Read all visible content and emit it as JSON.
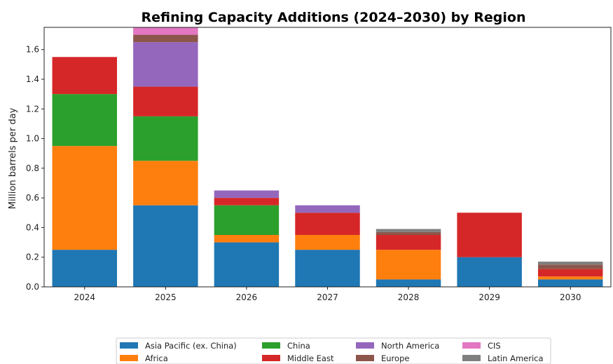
{
  "chart_data": {
    "type": "bar",
    "stacked": true,
    "title": "Refining Capacity Additions (2024–2030) by Region",
    "xlabel": "",
    "ylabel": "Million barrels per day",
    "ylim": [
      0,
      1.75
    ],
    "yticks": [
      "0.0",
      "0.2",
      "0.4",
      "0.6",
      "0.8",
      "1.0",
      "1.2",
      "1.4",
      "1.6"
    ],
    "grid": false,
    "legend_position": "bottom",
    "categories": [
      "2024",
      "2025",
      "2026",
      "2027",
      "2028",
      "2029",
      "2030"
    ],
    "series": [
      {
        "name": "Asia Pacific (ex. China)",
        "color": "#1f77b4",
        "values": [
          0.25,
          0.55,
          0.3,
          0.25,
          0.05,
          0.2,
          0.05
        ]
      },
      {
        "name": "Africa",
        "color": "#ff7f0e",
        "values": [
          0.7,
          0.3,
          0.05,
          0.1,
          0.2,
          0.0,
          0.02
        ]
      },
      {
        "name": "China",
        "color": "#2ca02c",
        "values": [
          0.35,
          0.3,
          0.2,
          0.0,
          0.0,
          0.0,
          0.0
        ]
      },
      {
        "name": "Middle East",
        "color": "#d62728",
        "values": [
          0.25,
          0.2,
          0.05,
          0.15,
          0.1,
          0.3,
          0.05
        ]
      },
      {
        "name": "North America",
        "color": "#9467bd",
        "values": [
          0.0,
          0.3,
          0.05,
          0.05,
          0.0,
          0.0,
          0.0
        ]
      },
      {
        "name": "Europe",
        "color": "#8c564b",
        "values": [
          0.0,
          0.05,
          0.0,
          0.0,
          0.02,
          0.0,
          0.03
        ]
      },
      {
        "name": "CIS",
        "color": "#e377c2",
        "values": [
          0.0,
          0.05,
          0.0,
          0.0,
          0.0,
          0.0,
          0.0
        ]
      },
      {
        "name": "Latin America",
        "color": "#7f7f7f",
        "values": [
          0.0,
          0.0,
          0.0,
          0.0,
          0.02,
          0.0,
          0.02
        ]
      }
    ]
  }
}
